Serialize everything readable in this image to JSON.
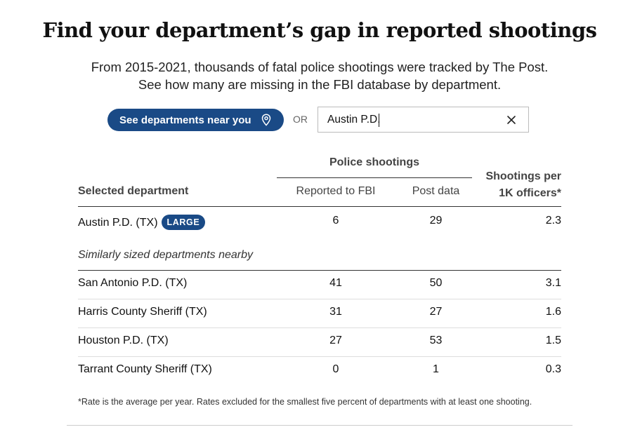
{
  "header": {
    "title": "Find your department’s gap in reported shootings",
    "subtitle_line1": "From 2015-2021, thousands of fatal police shootings were tracked by The Post.",
    "subtitle_line2": "See how many are missing in the FBI database by department."
  },
  "controls": {
    "near_button_label": "See departments near you",
    "or_label": "OR",
    "search_value": "Austin P.D.",
    "icons": {
      "near": "location-pin-icon",
      "clear": "close-icon"
    }
  },
  "table": {
    "group_header": "Police shootings",
    "col_department": "Selected department",
    "col_fbi": "Reported to FBI",
    "col_post": "Post data",
    "col_rate_line1": "Shootings per",
    "col_rate_line2": "1K officers*",
    "selected": {
      "name": "Austin P.D. (TX)",
      "badge": "LARGE",
      "fbi": "6",
      "post": "29",
      "rate": "2.3"
    },
    "similar_label": "Similarly sized departments nearby",
    "similar_rows": [
      {
        "name": "San Antonio P.D. (TX)",
        "fbi": "41",
        "post": "50",
        "rate": "3.1"
      },
      {
        "name": "Harris County Sheriff (TX)",
        "fbi": "31",
        "post": "27",
        "rate": "1.6"
      },
      {
        "name": "Houston P.D. (TX)",
        "fbi": "27",
        "post": "53",
        "rate": "1.5"
      },
      {
        "name": "Tarrant County Sheriff (TX)",
        "fbi": "0",
        "post": "1",
        "rate": "0.3"
      }
    ]
  },
  "footnote": "*Rate is the average per year. Rates excluded for the smallest five percent of departments with at least one shooting.",
  "colors": {
    "accent": "#1a4a86",
    "text": "#111111",
    "muted": "#444444"
  }
}
